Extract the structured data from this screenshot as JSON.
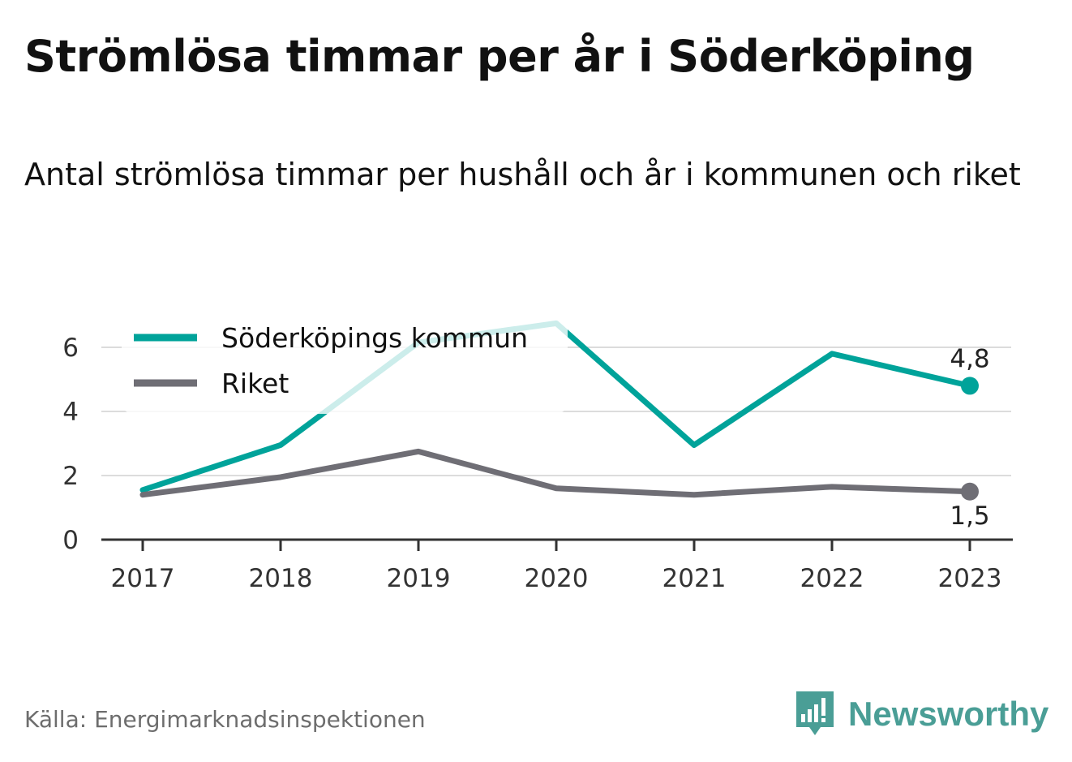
{
  "title": "Strömlösa timmar per år i Söderköping",
  "subtitle": "Antal strömlösa timmar per hushåll och år i kommunen och riket",
  "source": "Källa: Energimarknadsinspektionen",
  "brand": {
    "name": "Newsworthy",
    "icon": "bar-chart-speech-bubble-icon",
    "color": "#4a9e96"
  },
  "chart_data": {
    "type": "line",
    "x": [
      "2017",
      "2018",
      "2019",
      "2020",
      "2021",
      "2022",
      "2023"
    ],
    "yticks": [
      "0",
      "2",
      "4",
      "6"
    ],
    "ylim": [
      0,
      7
    ],
    "grid": true,
    "legend": "top-left",
    "series": [
      {
        "name": "Söderköpings kommun",
        "color": "#00a39a",
        "values": [
          1.55,
          2.95,
          6.15,
          6.75,
          2.95,
          5.8,
          4.8
        ],
        "end_label": "4,8"
      },
      {
        "name": "Riket",
        "color": "#6f6e75",
        "values": [
          1.4,
          1.95,
          2.75,
          1.6,
          1.4,
          1.65,
          1.5
        ],
        "end_label": "1,5"
      }
    ]
  }
}
